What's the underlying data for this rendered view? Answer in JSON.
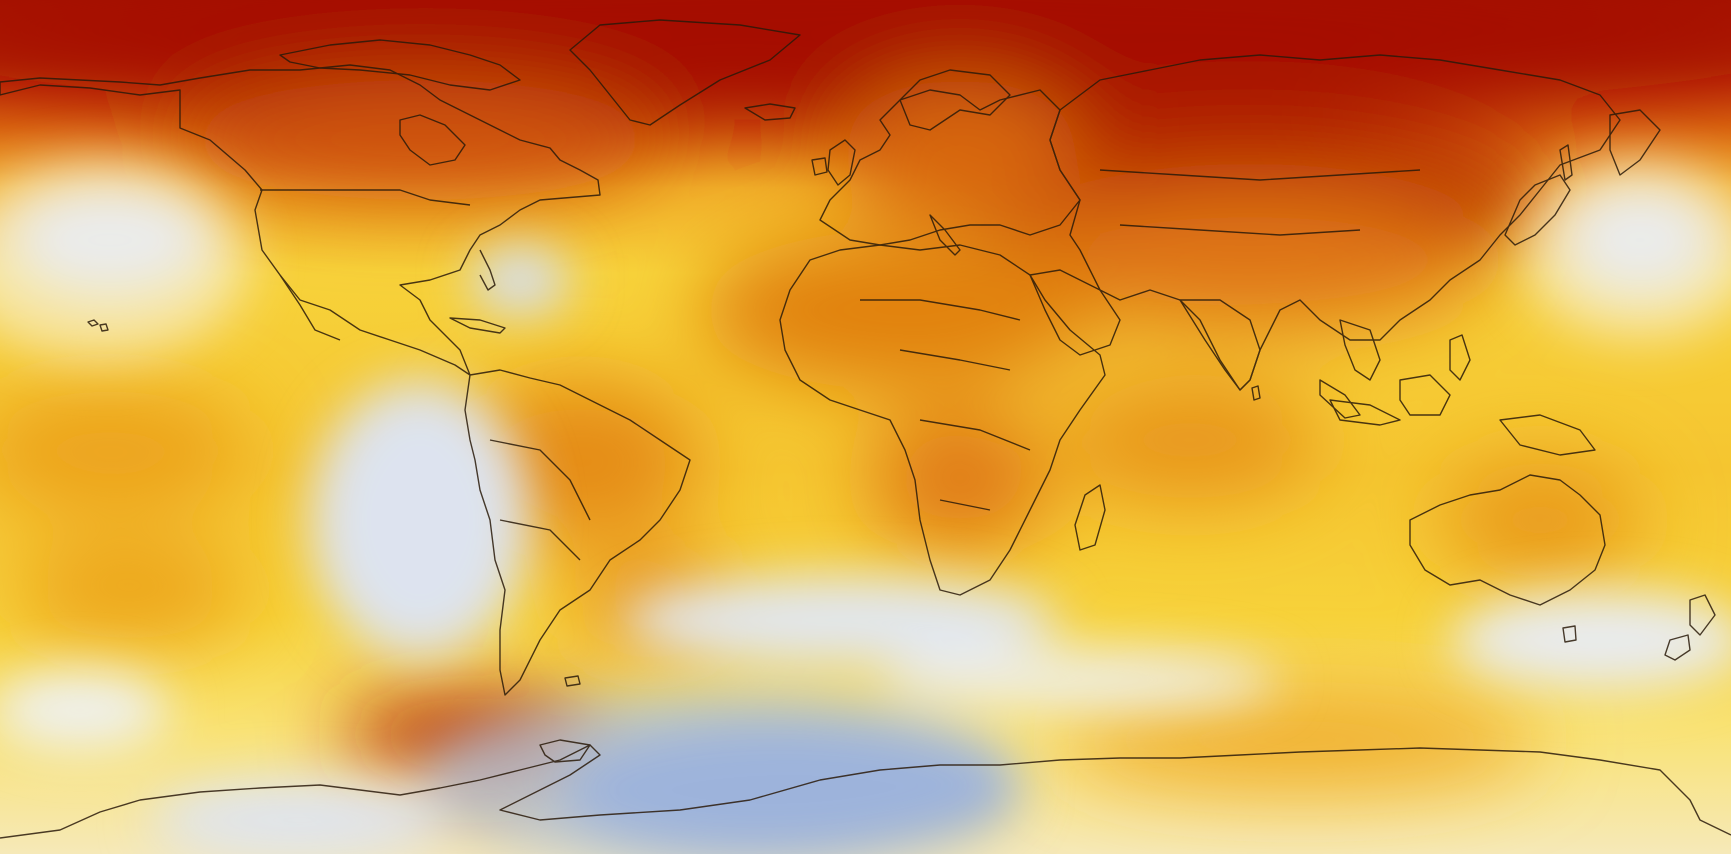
{
  "map": {
    "type": "global-temperature-anomaly",
    "projection": "equirectangular",
    "colors": {
      "hot_extreme": "#a50f00",
      "hot": "#c43e0a",
      "warm_orange": "#e07a12",
      "warm": "#f0a623",
      "mild_yellow": "#f7d23a",
      "pale_yellow": "#fbeea0",
      "neutral": "#f6f3ea",
      "cool_light": "#d6deee",
      "cool": "#a9bde0",
      "cool_deep": "#7f9bcf",
      "coastline": "#2a1a0a"
    },
    "landmasses": [
      "north-america",
      "greenland",
      "south-america",
      "europe",
      "africa",
      "asia",
      "australia",
      "antarctica",
      "madagascar",
      "japan",
      "new-zealand",
      "iceland",
      "british-isles",
      "indonesia"
    ]
  }
}
